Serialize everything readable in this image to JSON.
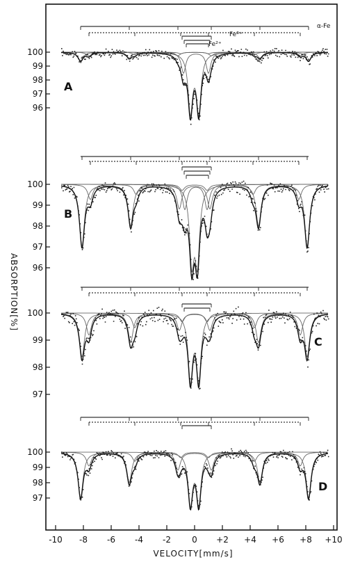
{
  "chart_data": {
    "type": "line",
    "xlabel": "VELOCITY[mm/s]",
    "ylabel": "ABSORPTION[%]",
    "x_ticks": [
      "-10",
      "-8",
      "-6",
      "-4",
      "-2",
      "0",
      "+2",
      "+4",
      "+6",
      "+8",
      "+10"
    ],
    "xlim": [
      -10,
      10
    ],
    "grid": false,
    "panels": [
      {
        "label": "A",
        "y_ticks": [
          "100",
          "99",
          "98",
          "97",
          "96"
        ],
        "ylim": [
          95,
          100.2
        ],
        "subspectrum_labels": [
          "α-Fe",
          "Fe³⁺",
          "Fe²⁺"
        ],
        "sextets": [
          {
            "center": 0.0,
            "split": [
              -8.2,
              -4.7,
              -1.2,
              1.2,
              4.7,
              8.2
            ],
            "depth": 0.7
          },
          {
            "center": 0.0,
            "split": [
              -7.6,
              -4.3,
              -1.0,
              1.0,
              4.3,
              7.6
            ],
            "depth": 0.3
          }
        ],
        "doublets": [
          {
            "lines": [
              -0.3,
              0.3
            ],
            "depth": 4.2
          },
          {
            "lines": [
              -0.8,
              1.0
            ],
            "depth": 1.5
          }
        ]
      },
      {
        "label": "B",
        "y_ticks": [
          "100",
          "99",
          "98",
          "97",
          "96"
        ],
        "ylim": [
          95.5,
          100.2
        ],
        "sextets": [
          {
            "center": 0.0,
            "split": [
              -8.1,
              -4.6,
              -1.1,
              1.1,
              4.6,
              8.1
            ],
            "depth": 3.3
          },
          {
            "center": 0.0,
            "split": [
              -7.5,
              -4.2,
              -0.9,
              0.9,
              4.2,
              7.5
            ],
            "depth": 0.8
          }
        ],
        "doublets": [
          {
            "lines": [
              -0.2,
              0.2
            ],
            "depth": 3.5
          },
          {
            "lines": [
              -0.7,
              0.9
            ],
            "depth": 1.2
          }
        ]
      },
      {
        "label": "C",
        "y_ticks": [
          "100",
          "99",
          "98",
          "97"
        ],
        "ylim": [
          96.6,
          100.2
        ],
        "sextets": [
          {
            "center": 0.0,
            "split": [
              -8.1,
              -4.6,
              -1.1,
              1.1,
              4.6,
              8.1
            ],
            "depth": 1.8
          },
          {
            "center": 0.0,
            "split": [
              -7.6,
              -4.3,
              -0.9,
              0.9,
              4.3,
              7.6
            ],
            "depth": 0.9
          }
        ],
        "doublets": [
          {
            "lines": [
              -0.3,
              0.3
            ],
            "depth": 2.4
          }
        ]
      },
      {
        "label": "D",
        "y_ticks": [
          "100",
          "99",
          "98",
          "97"
        ],
        "ylim": [
          95.6,
          100.2
        ],
        "sextets": [
          {
            "center": 0.0,
            "split": [
              -8.2,
              -4.7,
              -1.2,
              1.2,
              4.7,
              8.2
            ],
            "depth": 3.3
          },
          {
            "center": 0.0,
            "split": [
              -7.6,
              -4.3,
              -1.0,
              1.0,
              4.3,
              7.6
            ],
            "depth": 1.0
          }
        ],
        "doublets": [
          {
            "lines": [
              -0.3,
              0.3
            ],
            "depth": 3.3
          }
        ]
      }
    ]
  }
}
